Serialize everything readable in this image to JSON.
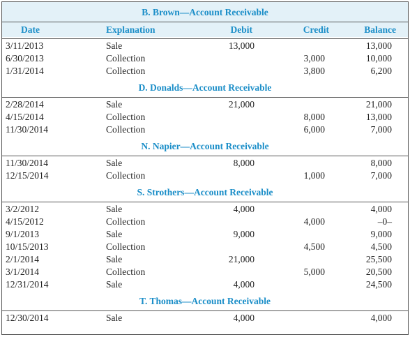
{
  "table": {
    "columns": [
      "Date",
      "Explanation",
      "Debit",
      "Credit",
      "Balance"
    ],
    "sections": [
      {
        "title": "B. Brown—Account Receivable",
        "rows": [
          {
            "date": "3/11/2013",
            "explanation": "Sale",
            "debit": "13,000",
            "balance": "13,000"
          },
          {
            "date": "6/30/2013",
            "explanation": "Collection",
            "credit": "3,000",
            "balance": "10,000"
          },
          {
            "date": "1/31/2014",
            "explanation": "Collection",
            "credit": "3,800",
            "balance": "6,200"
          }
        ]
      },
      {
        "title": "D. Donalds—Account Receivable",
        "rows": [
          {
            "date": "2/28/2014",
            "explanation": "Sale",
            "debit": "21,000",
            "balance": "21,000"
          },
          {
            "date": "4/15/2014",
            "explanation": "Collection",
            "credit": "8,000",
            "balance": "13,000"
          },
          {
            "date": "11/30/2014",
            "explanation": "Collection",
            "credit": "6,000",
            "balance": "7,000"
          }
        ]
      },
      {
        "title": "N. Napier—Account Receivable",
        "rows": [
          {
            "date": "11/30/2014",
            "explanation": "Sale",
            "debit": "8,000",
            "balance": "8,000"
          },
          {
            "date": "12/15/2014",
            "explanation": "Collection",
            "credit": "1,000",
            "balance": "7,000"
          }
        ]
      },
      {
        "title": "S. Strothers—Account Receivable",
        "rows": [
          {
            "date": "3/2/2012",
            "explanation": "Sale",
            "debit": "4,000",
            "balance": "4,000"
          },
          {
            "date": "4/15/2012",
            "explanation": "Collection",
            "credit": "4,000",
            "balance": "–0–"
          },
          {
            "date": "9/1/2013",
            "explanation": "Sale",
            "debit": "9,000",
            "balance": "9,000"
          },
          {
            "date": "10/15/2013",
            "explanation": "Collection",
            "credit": "4,500",
            "balance": "4,500"
          },
          {
            "date": "2/1/2014",
            "explanation": "Sale",
            "debit": "21,000",
            "balance": "25,500"
          },
          {
            "date": "3/1/2014",
            "explanation": "Collection",
            "credit": "5,000",
            "balance": "20,500"
          },
          {
            "date": "12/31/2014",
            "explanation": "Sale",
            "debit": "4,000",
            "balance": "24,500"
          }
        ]
      },
      {
        "title": "T. Thomas—Account Receivable",
        "rows": [
          {
            "date": "12/30/2014",
            "explanation": "Sale",
            "debit": "4,000",
            "balance": "4,000"
          }
        ]
      }
    ]
  }
}
